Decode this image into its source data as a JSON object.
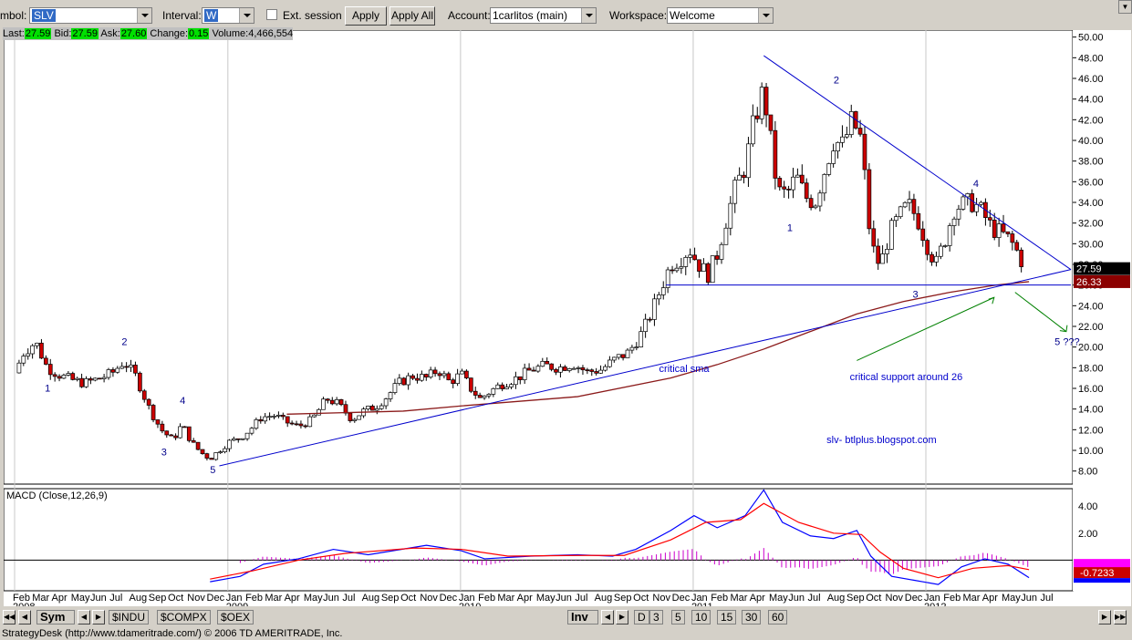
{
  "toolbar": {
    "symbol_label": "mbol:",
    "symbol_value": "SLV",
    "interval_label": "Interval:",
    "interval_value": "W",
    "ext_session_label": "Ext. session",
    "apply_label": "Apply",
    "apply_all_label": "Apply All",
    "account_label": "Account:",
    "account_value": "1carlitos (main)",
    "workspace_label": "Workspace:",
    "workspace_value": "Welcome"
  },
  "quote": {
    "last_label": "Last:",
    "last": "27.59",
    "bid_label": "Bid:",
    "bid": "27.59",
    "ask_label": "Ask:",
    "ask": "27.60",
    "change_label": "Change:",
    "change": "0.15",
    "volume_label": "Volume:",
    "volume": "4,466,554"
  },
  "colors": {
    "up": "#ffffff",
    "down": "#cc0000",
    "trend": "#0000cc",
    "sma": "#8b1a1a",
    "macd": "#0000ff",
    "signal": "#ff0000",
    "hist": "#cc00cc",
    "arrow": "#008000"
  },
  "chart_data": [
    {
      "type": "candlestick",
      "title": "",
      "x_ticks": [
        {
          "label": "Feb",
          "year": "2008"
        },
        {
          "label": "Mar"
        },
        {
          "label": "Apr"
        },
        {
          "label": "May"
        },
        {
          "label": "Jun"
        },
        {
          "label": "Jul"
        },
        {
          "label": "Aug"
        },
        {
          "label": "Sep"
        },
        {
          "label": "Oct"
        },
        {
          "label": "Nov"
        },
        {
          "label": "Dec"
        },
        {
          "label": "Jan",
          "year": "2009"
        },
        {
          "label": "Feb"
        },
        {
          "label": "Mar"
        },
        {
          "label": "Apr"
        },
        {
          "label": "May"
        },
        {
          "label": "Jun"
        },
        {
          "label": "Jul"
        },
        {
          "label": "Aug"
        },
        {
          "label": "Sep"
        },
        {
          "label": "Oct"
        },
        {
          "label": "Nov"
        },
        {
          "label": "Dec"
        },
        {
          "label": "Jan",
          "year": "2010"
        },
        {
          "label": "Feb"
        },
        {
          "label": "Mar"
        },
        {
          "label": "Apr"
        },
        {
          "label": "May"
        },
        {
          "label": "Jun"
        },
        {
          "label": "Jul"
        },
        {
          "label": "Aug"
        },
        {
          "label": "Sep"
        },
        {
          "label": "Oct"
        },
        {
          "label": "Nov"
        },
        {
          "label": "Dec"
        },
        {
          "label": "Jan",
          "year": "2011"
        },
        {
          "label": "Feb"
        },
        {
          "label": "Mar"
        },
        {
          "label": "Apr"
        },
        {
          "label": "May"
        },
        {
          "label": "Jun"
        },
        {
          "label": "Jul"
        },
        {
          "label": "Aug"
        },
        {
          "label": "Sep"
        },
        {
          "label": "Oct"
        },
        {
          "label": "Nov"
        },
        {
          "label": "Dec"
        },
        {
          "label": "Jan",
          "year": "2012"
        },
        {
          "label": "Feb"
        },
        {
          "label": "Mar"
        },
        {
          "label": "Apr"
        },
        {
          "label": "May"
        },
        {
          "label": "Jun"
        },
        {
          "label": "Jul"
        }
      ],
      "y_ticks": [
        "50.00",
        "48.00",
        "46.00",
        "44.00",
        "42.00",
        "40.00",
        "38.00",
        "36.00",
        "34.00",
        "32.00",
        "30.00",
        "28.00",
        "26.00",
        "24.00",
        "22.00",
        "20.00",
        "18.00",
        "16.00",
        "14.00",
        "12.00",
        "10.00",
        "8.00"
      ],
      "ylim": [
        7,
        50.5
      ],
      "price_markers": [
        {
          "value": "27.59",
          "color": "#000000"
        },
        {
          "value": "26.33",
          "color": "#8b0000"
        }
      ],
      "close_path": [
        [
          2008.08,
          17.5
        ],
        [
          2008.12,
          19.5
        ],
        [
          2008.17,
          20.5
        ],
        [
          2008.22,
          18
        ],
        [
          2008.28,
          17.2
        ],
        [
          2008.33,
          16.8
        ],
        [
          2008.38,
          16.5
        ],
        [
          2008.45,
          17
        ],
        [
          2008.5,
          17.5
        ],
        [
          2008.55,
          18.6
        ],
        [
          2008.6,
          17.2
        ],
        [
          2008.66,
          14
        ],
        [
          2008.71,
          12
        ],
        [
          2008.76,
          11
        ],
        [
          2008.8,
          12.5
        ],
        [
          2008.84,
          10.8
        ],
        [
          2008.88,
          9.8
        ],
        [
          2008.92,
          9.2
        ],
        [
          2008.96,
          10
        ],
        [
          2009.0,
          10.8
        ],
        [
          2009.05,
          11.2
        ],
        [
          2009.1,
          12.2
        ],
        [
          2009.14,
          13.2
        ],
        [
          2009.2,
          13.4
        ],
        [
          2009.24,
          12.8
        ],
        [
          2009.3,
          12.3
        ],
        [
          2009.36,
          13
        ],
        [
          2009.42,
          15
        ],
        [
          2009.47,
          14.5
        ],
        [
          2009.53,
          13
        ],
        [
          2009.58,
          13.8
        ],
        [
          2009.63,
          14.2
        ],
        [
          2009.68,
          15.2
        ],
        [
          2009.73,
          16.5
        ],
        [
          2009.79,
          17.2
        ],
        [
          2009.85,
          17
        ],
        [
          2009.9,
          17.8
        ],
        [
          2009.95,
          16.6
        ],
        [
          2010.0,
          17.4
        ],
        [
          2010.04,
          16
        ],
        [
          2010.08,
          15
        ],
        [
          2010.13,
          15.8
        ],
        [
          2010.18,
          16.5
        ],
        [
          2010.24,
          17
        ],
        [
          2010.3,
          17.8
        ],
        [
          2010.36,
          18.2
        ],
        [
          2010.42,
          18
        ],
        [
          2010.48,
          18.4
        ],
        [
          2010.54,
          17.6
        ],
        [
          2010.6,
          17.8
        ],
        [
          2010.66,
          18.8
        ],
        [
          2010.72,
          19.5
        ],
        [
          2010.78,
          21.5
        ],
        [
          2010.82,
          23.5
        ],
        [
          2010.86,
          25.8
        ],
        [
          2010.9,
          28
        ],
        [
          2010.94,
          28.5
        ],
        [
          2010.98,
          29.5
        ],
        [
          2011.02,
          28
        ],
        [
          2011.06,
          27
        ],
        [
          2011.1,
          29
        ],
        [
          2011.14,
          32.5
        ],
        [
          2011.18,
          35.5
        ],
        [
          2011.22,
          37.5
        ],
        [
          2011.26,
          42
        ],
        [
          2011.3,
          45
        ],
        [
          2011.32,
          41.5
        ],
        [
          2011.36,
          35
        ],
        [
          2011.4,
          34.8
        ],
        [
          2011.44,
          36.5
        ],
        [
          2011.48,
          34.5
        ],
        [
          2011.52,
          34
        ],
        [
          2011.56,
          37
        ],
        [
          2011.6,
          40
        ],
        [
          2011.64,
          39.5
        ],
        [
          2011.68,
          42
        ],
        [
          2011.72,
          40
        ],
        [
          2011.76,
          30
        ],
        [
          2011.8,
          27.8
        ],
        [
          2011.84,
          31
        ],
        [
          2011.88,
          32.5
        ],
        [
          2011.92,
          33.8
        ],
        [
          2011.96,
          32.5
        ],
        [
          2012.0,
          30
        ],
        [
          2012.04,
          28
        ],
        [
          2012.08,
          30.5
        ],
        [
          2012.12,
          33.5
        ],
        [
          2012.16,
          33.8
        ],
        [
          2012.2,
          34
        ],
        [
          2012.24,
          33
        ],
        [
          2012.28,
          31.5
        ],
        [
          2012.32,
          31
        ],
        [
          2012.36,
          30.3
        ],
        [
          2012.4,
          28.8
        ],
        [
          2012.42,
          27.59
        ]
      ],
      "sma_path": [
        [
          2009.25,
          13.5
        ],
        [
          2009.75,
          13.8
        ],
        [
          2010.0,
          14.3
        ],
        [
          2010.5,
          15.2
        ],
        [
          2010.9,
          17
        ],
        [
          2011.1,
          18.3
        ],
        [
          2011.3,
          19.8
        ],
        [
          2011.5,
          21.5
        ],
        [
          2011.7,
          23.2
        ],
        [
          2011.9,
          24.4
        ],
        [
          2012.1,
          25.3
        ],
        [
          2012.3,
          26
        ],
        [
          2012.44,
          26.33
        ]
      ],
      "trendlines": [
        {
          "from": [
            2008.96,
            8.5
          ],
          "to": [
            2012.62,
            27.5
          ]
        },
        {
          "from": [
            2011.3,
            48.2
          ],
          "to": [
            2012.62,
            27.5
          ]
        },
        {
          "from": [
            2010.88,
            26
          ],
          "to": [
            2012.62,
            26
          ]
        }
      ],
      "wave_labels": [
        {
          "text": "1",
          "x": 2008.21,
          "y": 15.7
        },
        {
          "text": "2",
          "x": 2008.54,
          "y": 20.2
        },
        {
          "text": "3",
          "x": 2008.71,
          "y": 9.5
        },
        {
          "text": "4",
          "x": 2008.79,
          "y": 14.5
        },
        {
          "text": "5",
          "x": 2008.92,
          "y": 7.8
        },
        {
          "text": "1",
          "x": 2011.4,
          "y": 31.2
        },
        {
          "text": "2",
          "x": 2011.6,
          "y": 45.5
        },
        {
          "text": "3",
          "x": 2011.94,
          "y": 24.8
        },
        {
          "text": "4",
          "x": 2012.2,
          "y": 35.5
        },
        {
          "text": "5 ???",
          "x": 2012.55,
          "y": 20.2
        }
      ],
      "annotations": [
        {
          "text": "critical sma",
          "x": 2010.85,
          "y": 17.6
        },
        {
          "text": "critical support around 26",
          "x": 2011.67,
          "y": 16.8
        },
        {
          "text": "slv- btlplus.blogspot.com",
          "x": 2011.57,
          "y": 10.7
        }
      ]
    },
    {
      "type": "line",
      "title": "MACD (Close,12,26,9)",
      "y_ticks": [
        "4.00",
        "2.00"
      ],
      "ylim": [
        -2.2,
        5.5
      ],
      "current_value": "-0.7233",
      "series": [
        {
          "name": "MACD",
          "values": [
            [
              2008.92,
              -1.6
            ],
            [
              2009.05,
              -1.2
            ],
            [
              2009.15,
              -0.3
            ],
            [
              2009.3,
              0.1
            ],
            [
              2009.45,
              0.8
            ],
            [
              2009.6,
              0.4
            ],
            [
              2009.85,
              1.1
            ],
            [
              2010.0,
              0.7
            ],
            [
              2010.1,
              0.1
            ],
            [
              2010.3,
              0.3
            ],
            [
              2010.5,
              0.4
            ],
            [
              2010.65,
              0.3
            ],
            [
              2010.75,
              0.8
            ],
            [
              2010.9,
              2.2
            ],
            [
              2011.0,
              3.3
            ],
            [
              2011.1,
              2.4
            ],
            [
              2011.22,
              3.3
            ],
            [
              2011.3,
              5.2
            ],
            [
              2011.38,
              2.8
            ],
            [
              2011.5,
              1.8
            ],
            [
              2011.6,
              1.6
            ],
            [
              2011.7,
              2.2
            ],
            [
              2011.76,
              0.3
            ],
            [
              2011.85,
              -1.2
            ],
            [
              2011.95,
              -1.5
            ],
            [
              2012.05,
              -1.8
            ],
            [
              2012.15,
              -0.5
            ],
            [
              2012.25,
              0.1
            ],
            [
              2012.35,
              -0.3
            ],
            [
              2012.44,
              -1.3
            ]
          ]
        },
        {
          "name": "Signal",
          "values": [
            [
              2008.92,
              -1.4
            ],
            [
              2009.1,
              -0.8
            ],
            [
              2009.3,
              0
            ],
            [
              2009.5,
              0.5
            ],
            [
              2009.8,
              0.9
            ],
            [
              2010.0,
              0.8
            ],
            [
              2010.2,
              0.3
            ],
            [
              2010.5,
              0.35
            ],
            [
              2010.7,
              0.35
            ],
            [
              2010.9,
              1.5
            ],
            [
              2011.05,
              2.8
            ],
            [
              2011.2,
              3
            ],
            [
              2011.3,
              4.2
            ],
            [
              2011.45,
              2.8
            ],
            [
              2011.6,
              2
            ],
            [
              2011.72,
              1.9
            ],
            [
              2011.8,
              0.6
            ],
            [
              2011.9,
              -0.6
            ],
            [
              2012.05,
              -1.3
            ],
            [
              2012.2,
              -0.6
            ],
            [
              2012.35,
              -0.4
            ],
            [
              2012.44,
              -0.7
            ]
          ]
        }
      ],
      "histogram_range": [
        2009.05,
        2012.44
      ]
    }
  ],
  "bottom_bar": {
    "sym_label": "Sym",
    "tabs": [
      "$INDU",
      "$COMPX",
      "$OEX"
    ],
    "inv_label": "Inv",
    "intervals": [
      "D",
      "3",
      "5",
      "10",
      "15",
      "30",
      "60"
    ]
  },
  "status_text": "StrategyDesk (http://www.tdameritrade.com/) © 2006 TD AMERITRADE, Inc."
}
